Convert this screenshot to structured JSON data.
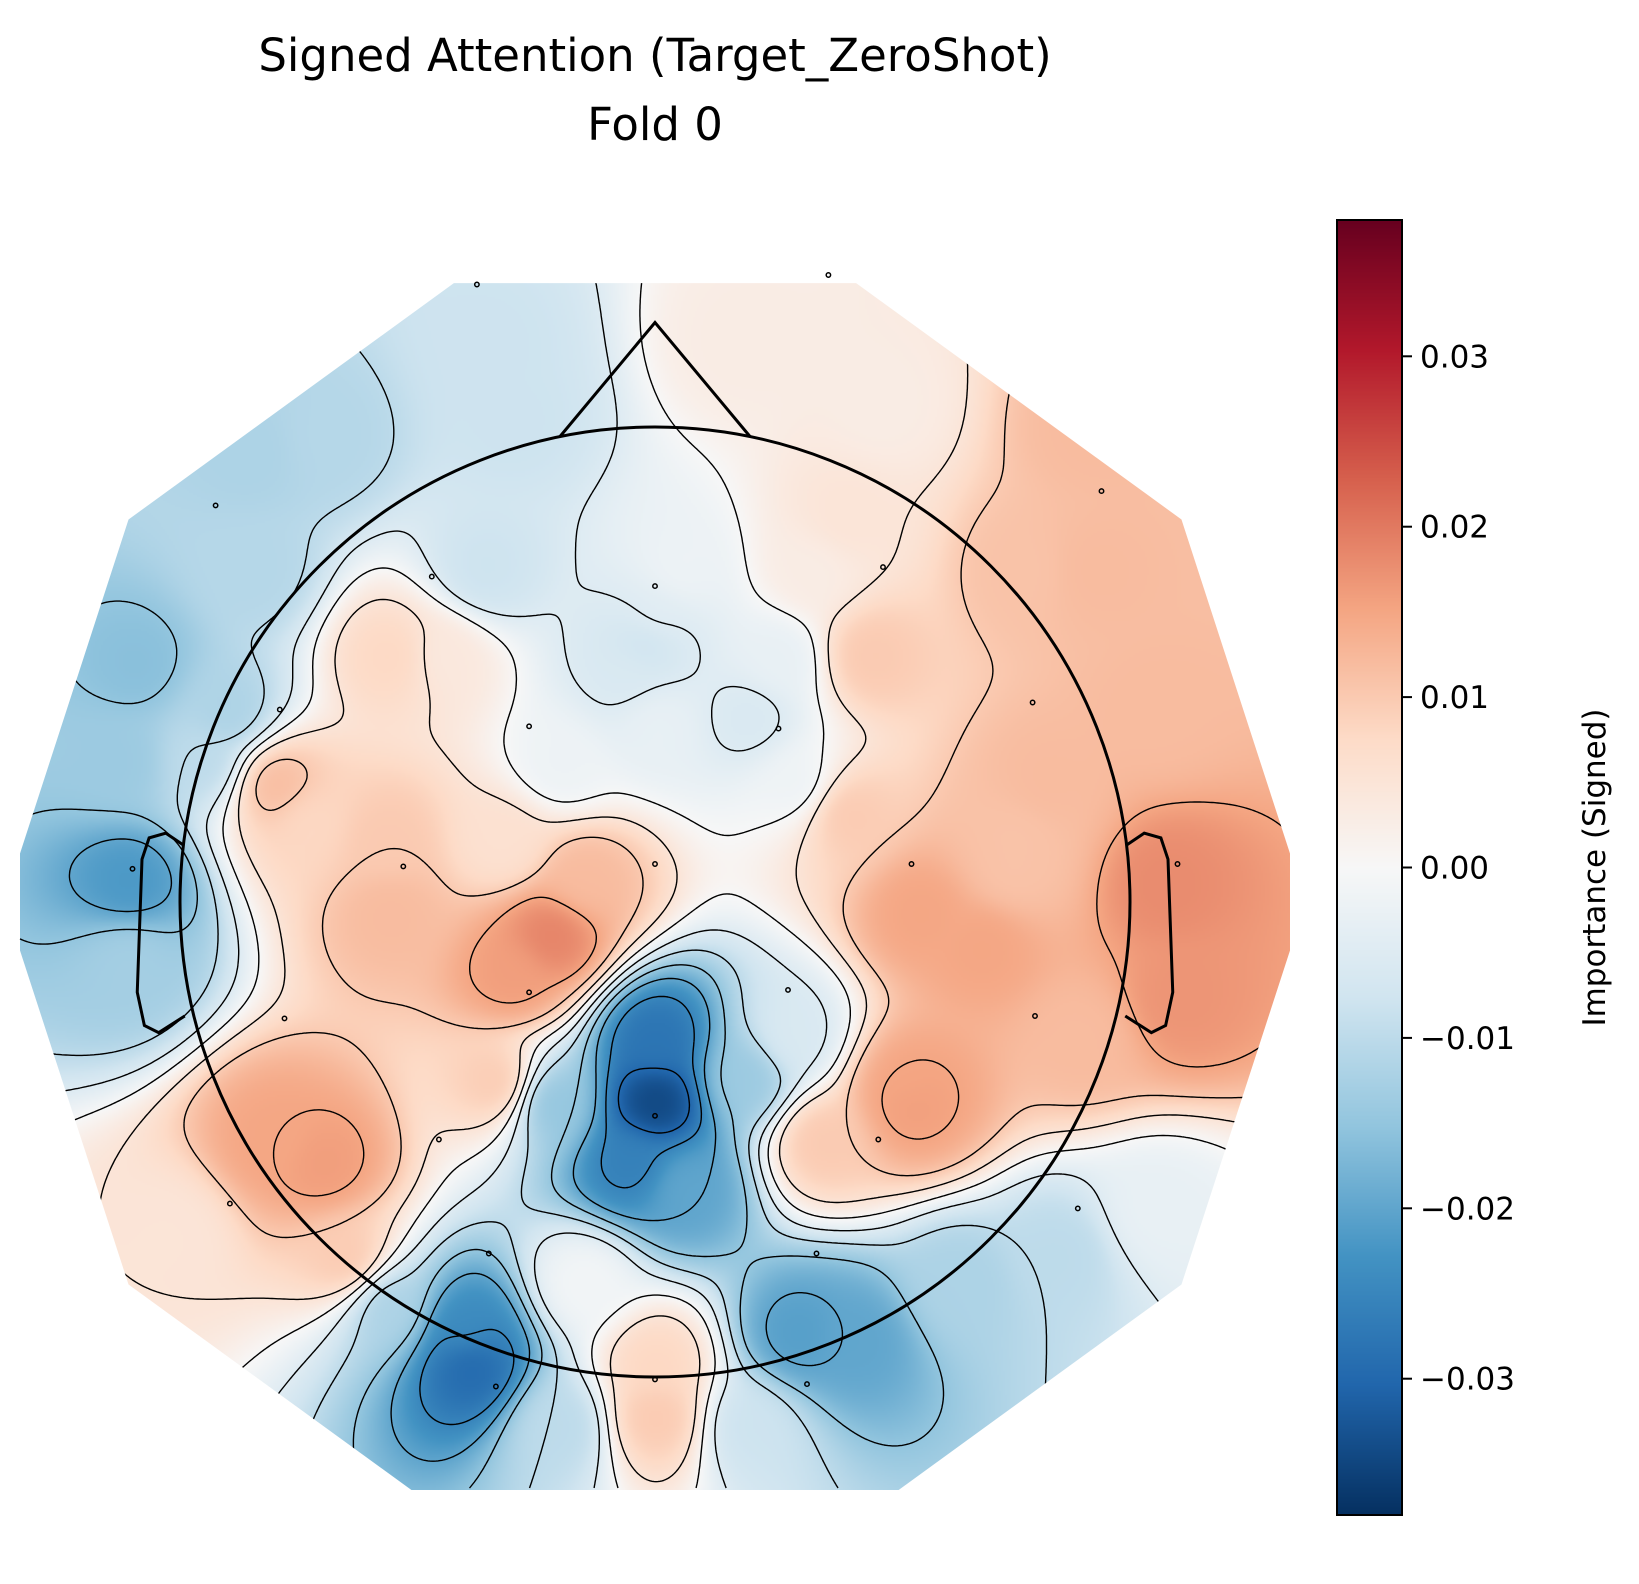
{
  "chart_data": {
    "type": "heatmap",
    "subtype": "eeg-topomap",
    "title": "Signed Attention (Target_ZeroShot)",
    "subtitle": "Fold 0",
    "colorbar": {
      "label": "Importance (Signed)",
      "colormap": "RdBu_r",
      "vmin": -0.038,
      "vmax": 0.038,
      "ticks": [
        -0.03,
        -0.02,
        -0.01,
        0.0,
        0.01,
        0.02,
        0.03
      ],
      "tick_labels": [
        "−0.03",
        "−0.02",
        "−0.01",
        "0.00",
        "0.01",
        "0.02",
        "0.03"
      ]
    },
    "contour_levels": [
      -0.03,
      -0.025,
      -0.02,
      -0.015,
      -0.01,
      -0.005,
      0.0,
      0.005,
      0.01,
      0.015,
      0.02
    ],
    "sensors": [
      {
        "x": 0.0,
        "y": 0.6,
        "value": -0.004
      },
      {
        "x": -0.45,
        "y": 0.52,
        "value": 0.004
      },
      {
        "x": 0.45,
        "y": 0.52,
        "value": 0.01
      },
      {
        "x": -0.2,
        "y": 0.29,
        "value": -0.002
      },
      {
        "x": 0.3,
        "y": 0.25,
        "value": -0.002
      },
      {
        "x": 0.0,
        "y": 0.38,
        "value": -0.003
      },
      {
        "x": -0.73,
        "y": 0.17,
        "value": 0.008
      },
      {
        "x": -0.57,
        "y": 0.13,
        "value": 0.01
      },
      {
        "x": 0.76,
        "y": 0.14,
        "value": 0.011
      },
      {
        "x": -0.55,
        "y": 0.52,
        "value": 0.008
      },
      {
        "x": -0.32,
        "y": 0.13,
        "value": 0.006
      },
      {
        "x": 0.4,
        "y": 0.19,
        "value": 0.01
      },
      {
        "x": -0.8,
        "y": 0.25,
        "value": 0.012
      },
      {
        "x": 0.82,
        "y": 0.25,
        "value": 0.012
      },
      {
        "x": -0.56,
        "y": -0.02,
        "value": 0.012
      },
      {
        "x": -0.06,
        "y": 0.48,
        "value": -0.006
      },
      {
        "x": 0.2,
        "y": 0.39,
        "value": -0.006
      },
      {
        "x": -0.02,
        "y": 0.55,
        "value": -0.008
      },
      {
        "x": 0.26,
        "y": 0.51,
        "value": -0.003
      },
      {
        "x": 0.05,
        "y": 0.7,
        "value": -0.002
      },
      {
        "x": -0.36,
        "y": 0.7,
        "value": -0.008
      },
      {
        "x": 0.33,
        "y": 0.7,
        "value": 0.003
      },
      {
        "x": 0.78,
        "y": 0.7,
        "value": 0.011
      },
      {
        "x": -0.85,
        "y": 0.7,
        "value": -0.011
      },
      {
        "x": -0.7,
        "y": 0.98,
        "value": -0.011
      },
      {
        "x": -0.85,
        "y": 0.95,
        "value": -0.012
      },
      {
        "x": 0.4,
        "y": 0.81,
        "value": 0.005
      },
      {
        "x": 0.47,
        "y": 1.04,
        "value": 0.003
      },
      {
        "x": 0.18,
        "y": 1.18,
        "value": 0.003
      },
      {
        "x": -0.35,
        "y": 1.17,
        "value": -0.008
      },
      {
        "x": -0.3,
        "y": 1.01,
        "value": -0.008
      },
      {
        "x": 0.92,
        "y": 1.0,
        "value": 0.012
      },
      {
        "x": 0.92,
        "y": 0.7,
        "value": 0.012
      },
      {
        "x": -0.95,
        "y": 0.3,
        "value": -0.01
      },
      {
        "x": -1.13,
        "y": 0.3,
        "value": -0.014
      },
      {
        "x": -1.09,
        "y": 0.5,
        "value": -0.016
      },
      {
        "x": -1.11,
        "y": 0.04,
        "value": -0.022
      },
      {
        "x": -1.11,
        "y": -0.12,
        "value": -0.013
      },
      {
        "x": -0.9,
        "y": 0.4,
        "value": -0.012
      },
      {
        "x": -0.22,
        "y": -0.07,
        "value": 0.019
      },
      {
        "x": -0.3,
        "y": -0.15,
        "value": 0.016
      },
      {
        "x": -0.7,
        "y": -0.55,
        "value": 0.016
      },
      {
        "x": -0.8,
        "y": -0.5,
        "value": 0.015
      },
      {
        "x": -0.33,
        "y": -0.38,
        "value": 0.01
      },
      {
        "x": -0.15,
        "y": 0.05,
        "value": 0.012
      },
      {
        "x": 0.56,
        "y": -0.02,
        "value": 0.015
      },
      {
        "x": 0.69,
        "y": -0.09,
        "value": 0.015
      },
      {
        "x": 0.53,
        "y": -0.39,
        "value": 0.015
      },
      {
        "x": 0.54,
        "y": -0.42,
        "value": 0.016
      },
      {
        "x": 0.35,
        "y": -0.5,
        "value": 0.01
      },
      {
        "x": 0.75,
        "y": 0.07,
        "value": 0.011
      },
      {
        "x": 1.07,
        "y": 0.04,
        "value": 0.018
      },
      {
        "x": 1.1,
        "y": -0.2,
        "value": 0.017
      },
      {
        "x": 1.05,
        "y": 0.4,
        "value": 0.012
      },
      {
        "x": 0.9,
        "y": -0.28,
        "value": 0.012
      },
      {
        "x": 0.0,
        "y": -0.29,
        "value": -0.028
      },
      {
        "x": 0.0,
        "y": -0.42,
        "value": -0.035
      },
      {
        "x": -0.05,
        "y": -0.55,
        "value": -0.026
      },
      {
        "x": 0.06,
        "y": -0.6,
        "value": -0.02
      },
      {
        "x": -0.22,
        "y": -0.42,
        "value": -0.015
      },
      {
        "x": 0.19,
        "y": -0.37,
        "value": -0.014
      },
      {
        "x": 0.29,
        "y": -0.28,
        "value": -0.006
      },
      {
        "x": -0.15,
        "y": -0.8,
        "value": -0.001
      },
      {
        "x": 0.0,
        "y": -0.97,
        "value": 0.008
      },
      {
        "x": 0.0,
        "y": -1.08,
        "value": 0.01
      },
      {
        "x": -0.39,
        "y": -0.97,
        "value": -0.03
      },
      {
        "x": -0.4,
        "y": -0.9,
        "value": -0.024
      },
      {
        "x": -0.56,
        "y": -0.85,
        "value": -0.012
      },
      {
        "x": 0.3,
        "y": -0.91,
        "value": -0.021
      },
      {
        "x": 0.42,
        "y": -0.92,
        "value": -0.02
      },
      {
        "x": 0.64,
        "y": -0.8,
        "value": -0.012
      },
      {
        "x": 0.85,
        "y": -0.74,
        "value": -0.01
      },
      {
        "x": -0.65,
        "y": -0.75,
        "value": 0.01
      },
      {
        "x": -1.02,
        "y": -0.7,
        "value": 0.005
      },
      {
        "x": 1.05,
        "y": -0.65,
        "value": -0.003
      },
      {
        "x": 0.2,
        "y": -1.1,
        "value": -0.008
      },
      {
        "x": -0.2,
        "y": -1.1,
        "value": -0.01
      }
    ],
    "electrodes": [
      {
        "x": -0.375,
        "y": 1.3
      },
      {
        "x": 0.365,
        "y": 1.32
      },
      {
        "x": -0.925,
        "y": 0.835
      },
      {
        "x": 0.94,
        "y": 0.865
      },
      {
        "x": 0.48,
        "y": 0.705
      },
      {
        "x": -0.47,
        "y": 0.685
      },
      {
        "x": 0.0,
        "y": 0.665
      },
      {
        "x": -0.79,
        "y": 0.405
      },
      {
        "x": -0.265,
        "y": 0.37
      },
      {
        "x": 0.26,
        "y": 0.365
      },
      {
        "x": 0.795,
        "y": 0.42
      },
      {
        "x": -1.1,
        "y": 0.07
      },
      {
        "x": -0.53,
        "y": 0.075
      },
      {
        "x": 0.0,
        "y": 0.08
      },
      {
        "x": 0.54,
        "y": 0.08
      },
      {
        "x": 1.1,
        "y": 0.08
      },
      {
        "x": -0.78,
        "y": -0.245
      },
      {
        "x": -0.265,
        "y": -0.19
      },
      {
        "x": 0.28,
        "y": -0.185
      },
      {
        "x": 0.8,
        "y": -0.24
      },
      {
        "x": -0.455,
        "y": -0.5
      },
      {
        "x": 0.0,
        "y": -0.45
      },
      {
        "x": 0.47,
        "y": -0.5
      },
      {
        "x": -0.895,
        "y": -0.635
      },
      {
        "x": 0.89,
        "y": -0.645
      },
      {
        "x": -0.35,
        "y": -0.74
      },
      {
        "x": 0.34,
        "y": -0.74
      },
      {
        "x": -0.335,
        "y": -1.02
      },
      {
        "x": 0.0,
        "y": -1.005
      },
      {
        "x": 0.32,
        "y": -1.015
      }
    ],
    "head_outline": true,
    "grid": false
  }
}
